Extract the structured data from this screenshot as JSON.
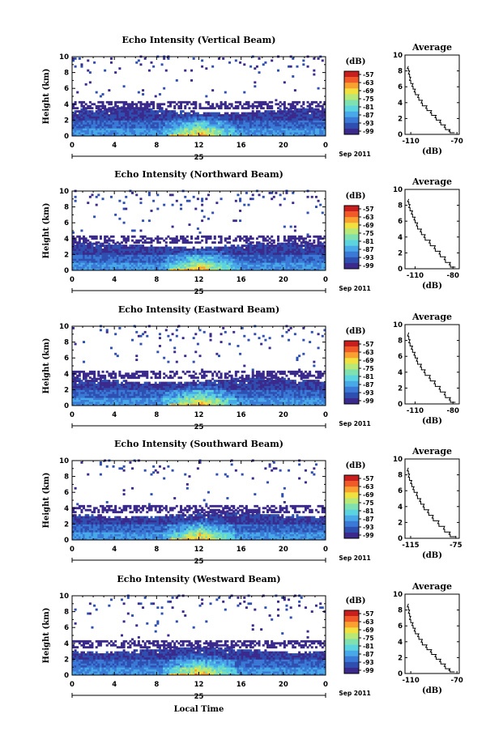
{
  "figure": {
    "x_label": "Local Time"
  },
  "colorbar_colors": [
    "#3b2a8c",
    "#2f4fb0",
    "#3a79d6",
    "#48a8e8",
    "#5cd4e0",
    "#7fe0b0",
    "#b8e878",
    "#f0e040",
    "#f8a030",
    "#f05a28",
    "#c81e1e"
  ],
  "chart_data": [
    {
      "type": "heatmap",
      "title": "Echo Intensity (Vertical Beam)",
      "ylabel": "Height (km)",
      "xlabel": "",
      "x_ticks": [
        "0",
        "4",
        "8",
        "12",
        "16",
        "20",
        "0"
      ],
      "y_ticks": [
        "0",
        "2",
        "4",
        "6",
        "8",
        "10"
      ],
      "xlim": [
        0,
        24
      ],
      "ylim": [
        0,
        10
      ],
      "date_day": "25",
      "date_month_year": "Sep 2011",
      "colorbar": {
        "unit": "(dB)",
        "ticks": [
          "-57",
          "-63",
          "-69",
          "-75",
          "-81",
          "-87",
          "-93",
          "-99"
        ]
      },
      "profile": {
        "title": "Average",
        "xlabel": "(dB)",
        "x_ticks": [
          "-110",
          "-70"
        ],
        "xlim": [
          -115,
          -68
        ],
        "y_ticks": [
          "0",
          "2",
          "4",
          "6",
          "8",
          "10"
        ],
        "x": [
          -72,
          -76,
          -80,
          -84,
          -88,
          -92,
          -96,
          -100,
          -103,
          -106,
          -108,
          -110,
          -111,
          -112
        ],
        "y": [
          0.2,
          0.6,
          1.2,
          1.8,
          2.4,
          3.0,
          3.6,
          4.3,
          5.0,
          5.7,
          6.4,
          7.2,
          8.0,
          8.6
        ]
      }
    },
    {
      "type": "heatmap",
      "title": "Echo Intensity (Northward Beam)",
      "ylabel": "Height (km)",
      "xlabel": "",
      "x_ticks": [
        "0",
        "4",
        "8",
        "12",
        "16",
        "20",
        "0"
      ],
      "y_ticks": [
        "0",
        "2",
        "4",
        "6",
        "8",
        "10"
      ],
      "xlim": [
        0,
        24
      ],
      "ylim": [
        0,
        10
      ],
      "date_day": "25",
      "date_month_year": "Sep 2011",
      "colorbar": {
        "unit": "(dB)",
        "ticks": [
          "-57",
          "-63",
          "-69",
          "-75",
          "-81",
          "-87",
          "-93",
          "-99"
        ]
      },
      "profile": {
        "title": "Average",
        "xlabel": "(dB)",
        "x_ticks": [
          "-110",
          "-80"
        ],
        "xlim": [
          -118,
          -75
        ],
        "y_ticks": [
          "0",
          "2",
          "4",
          "6",
          "8",
          "10"
        ],
        "x": [
          -78,
          -82,
          -86,
          -90,
          -94,
          -98,
          -102,
          -105,
          -108,
          -110,
          -112,
          -114,
          -115
        ],
        "y": [
          0.2,
          0.8,
          1.5,
          2.2,
          2.9,
          3.6,
          4.3,
          5.0,
          5.8,
          6.5,
          7.3,
          8.1,
          8.8
        ]
      }
    },
    {
      "type": "heatmap",
      "title": "Echo Intensity (Eastward Beam)",
      "ylabel": "Height (km)",
      "xlabel": "",
      "x_ticks": [
        "0",
        "4",
        "8",
        "12",
        "16",
        "20",
        "0"
      ],
      "y_ticks": [
        "0",
        "2",
        "4",
        "6",
        "8",
        "10"
      ],
      "xlim": [
        0,
        24
      ],
      "ylim": [
        0,
        10
      ],
      "date_day": "25",
      "date_month_year": "Sep 2011",
      "colorbar": {
        "unit": "(dB)",
        "ticks": [
          "-57",
          "-63",
          "-69",
          "-75",
          "-81",
          "-87",
          "-93",
          "-99"
        ]
      },
      "profile": {
        "title": "Average",
        "xlabel": "(dB)",
        "x_ticks": [
          "-110",
          "-80"
        ],
        "xlim": [
          -118,
          -75
        ],
        "y_ticks": [
          "0",
          "2",
          "4",
          "6",
          "8",
          "10"
        ],
        "x": [
          -78,
          -82,
          -86,
          -90,
          -94,
          -98,
          -102,
          -105,
          -108,
          -110,
          -112,
          -114,
          -115
        ],
        "y": [
          0.2,
          0.8,
          1.5,
          2.2,
          2.9,
          3.6,
          4.3,
          5.0,
          5.8,
          6.5,
          7.3,
          8.1,
          9.0
        ]
      }
    },
    {
      "type": "heatmap",
      "title": "Echo Intensity (Southward Beam)",
      "ylabel": "Height (km)",
      "xlabel": "",
      "x_ticks": [
        "0",
        "4",
        "8",
        "12",
        "16",
        "20",
        "0"
      ],
      "y_ticks": [
        "0",
        "2",
        "4",
        "6",
        "8",
        "10"
      ],
      "xlim": [
        0,
        24
      ],
      "ylim": [
        0,
        10
      ],
      "date_day": "25",
      "date_month_year": "Sep 2011",
      "colorbar": {
        "unit": "(dB)",
        "ticks": [
          "-57",
          "-63",
          "-69",
          "-75",
          "-81",
          "-87",
          "-93",
          "-99"
        ]
      },
      "profile": {
        "title": "Average",
        "xlabel": "(dB)",
        "x_ticks": [
          "-115",
          "-75"
        ],
        "xlim": [
          -120,
          -72
        ],
        "y_ticks": [
          "0",
          "2",
          "4",
          "6",
          "8",
          "10"
        ],
        "x": [
          -75,
          -80,
          -85,
          -90,
          -95,
          -99,
          -103,
          -106,
          -109,
          -112,
          -114,
          -116,
          -117
        ],
        "y": [
          0.2,
          0.8,
          1.5,
          2.2,
          2.9,
          3.6,
          4.3,
          5.0,
          5.8,
          6.5,
          7.3,
          8.1,
          8.9
        ]
      }
    },
    {
      "type": "heatmap",
      "title": "Echo Intensity (Westward Beam)",
      "ylabel": "Height (km)",
      "xlabel": "Local Time",
      "x_ticks": [
        "0",
        "4",
        "8",
        "12",
        "16",
        "20",
        "0"
      ],
      "y_ticks": [
        "0",
        "2",
        "4",
        "6",
        "8",
        "10"
      ],
      "xlim": [
        0,
        24
      ],
      "ylim": [
        0,
        10
      ],
      "date_day": "25",
      "date_month_year": "Sep 2011",
      "colorbar": {
        "unit": "(dB)",
        "ticks": [
          "-57",
          "-63",
          "-69",
          "-75",
          "-81",
          "-87",
          "-93",
          "-99"
        ]
      },
      "profile": {
        "title": "Average",
        "xlabel": "(dB)",
        "x_ticks": [
          "-110",
          "-70"
        ],
        "xlim": [
          -115,
          -68
        ],
        "y_ticks": [
          "0",
          "2",
          "4",
          "6",
          "8",
          "10"
        ],
        "x": [
          -72,
          -76,
          -80,
          -84,
          -88,
          -92,
          -96,
          -100,
          -103,
          -106,
          -108,
          -110,
          -111,
          -112
        ],
        "y": [
          0.2,
          0.6,
          1.2,
          1.8,
          2.4,
          3.0,
          3.6,
          4.3,
          5.0,
          5.7,
          6.4,
          7.2,
          8.0,
          8.8
        ]
      }
    }
  ]
}
